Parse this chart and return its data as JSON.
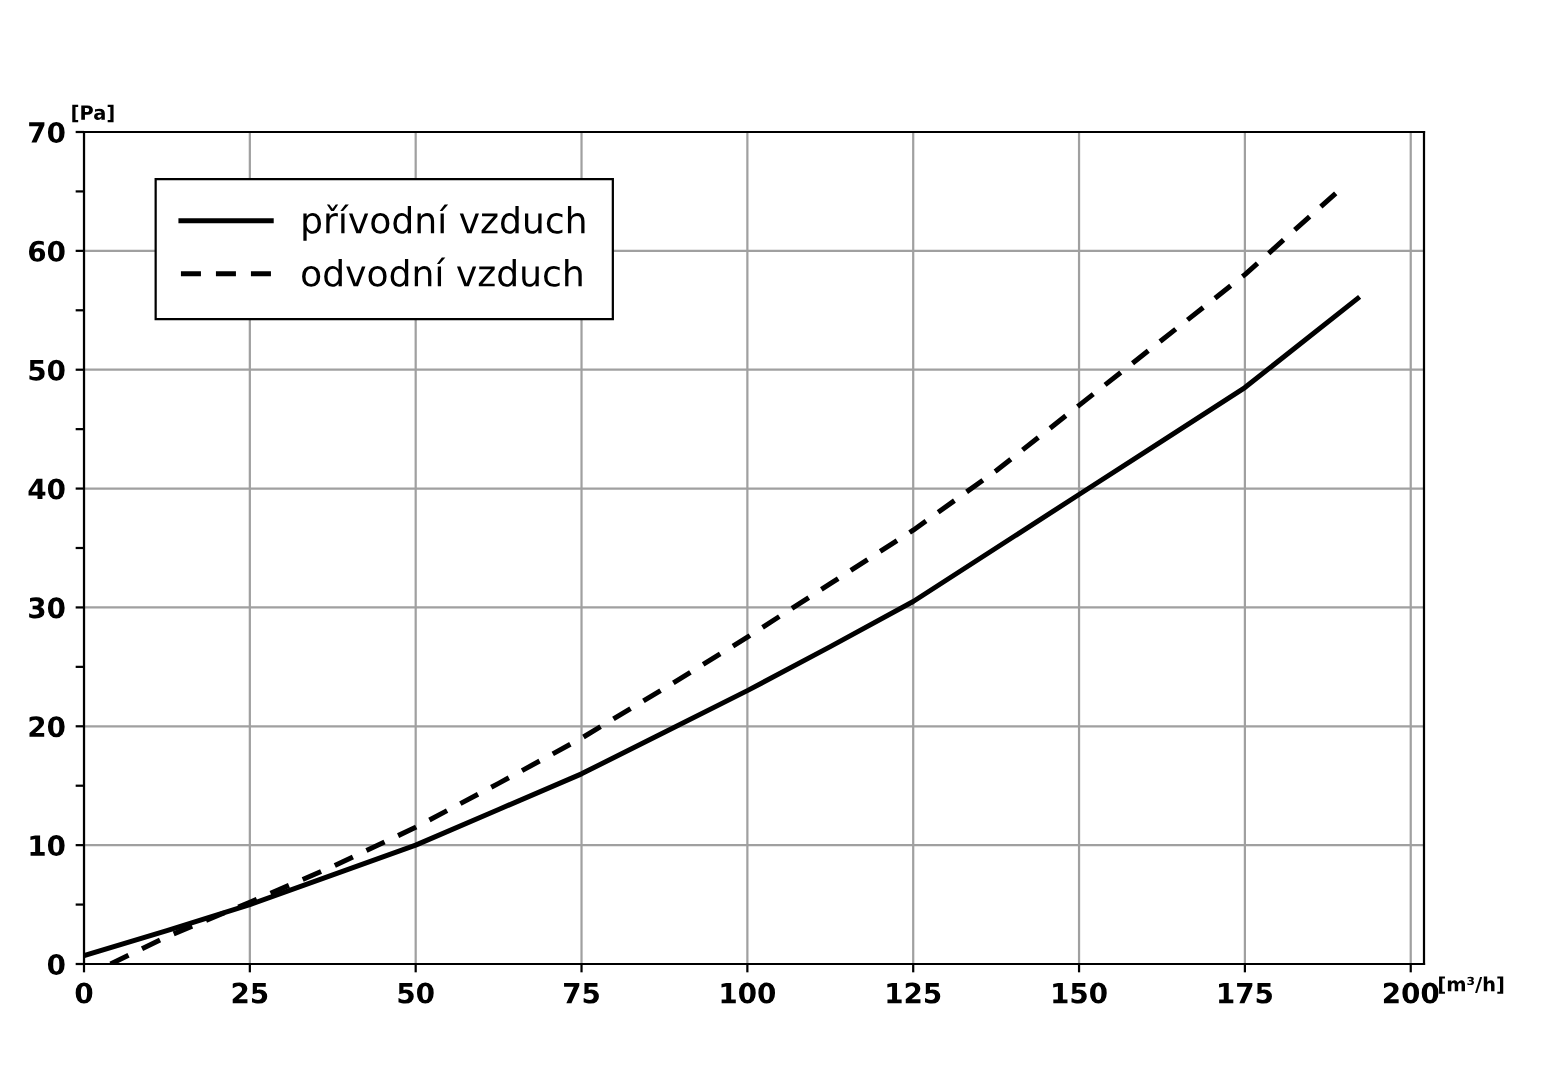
{
  "chart_data": {
    "type": "line",
    "xlabel": "[m³/h]",
    "ylabel": "[Pa]",
    "series": [
      {
        "name": "přívodní vzduch",
        "color": "#000000",
        "line_style": "solid",
        "x": [
          0,
          12.5,
          25,
          37.5,
          50,
          62.5,
          75,
          87.5,
          100,
          112.5,
          125,
          137.5,
          150,
          162.5,
          175,
          192
        ],
        "values": [
          0.7,
          2.8,
          5,
          7.5,
          10,
          13,
          16,
          19.5,
          23,
          26.7,
          30.5,
          35,
          39.5,
          44,
          48.5,
          56
        ]
      },
      {
        "name": "odvodní vzduch",
        "color": "#000000",
        "line_style": "dashed",
        "x": [
          4,
          12.5,
          25,
          37.5,
          50,
          62.5,
          75,
          87.5,
          100,
          112.5,
          125,
          137.5,
          150,
          162.5,
          175,
          189
        ],
        "values": [
          0,
          2.3,
          5.2,
          8.2,
          11.5,
          15.2,
          19,
          23.2,
          27.5,
          32,
          36.5,
          41.5,
          47,
          52.5,
          58,
          65
        ]
      }
    ],
    "xlim": [
      0,
      202
    ],
    "xticks": [
      0,
      25,
      50,
      75,
      100,
      125,
      150,
      175,
      200
    ],
    "ylim": [
      0,
      70
    ],
    "yticks": [
      0,
      {
        "value": 5,
        "label": null
      },
      10,
      {
        "value": 15,
        "label": null
      },
      20,
      {
        "value": 25,
        "label": null
      },
      30,
      {
        "value": 35,
        "label": null
      },
      40,
      {
        "value": 45,
        "label": null
      },
      50,
      {
        "value": 55,
        "label": null
      },
      60,
      {
        "value": 65,
        "label": null
      },
      70
    ],
    "grid": true,
    "legend": "top left"
  }
}
